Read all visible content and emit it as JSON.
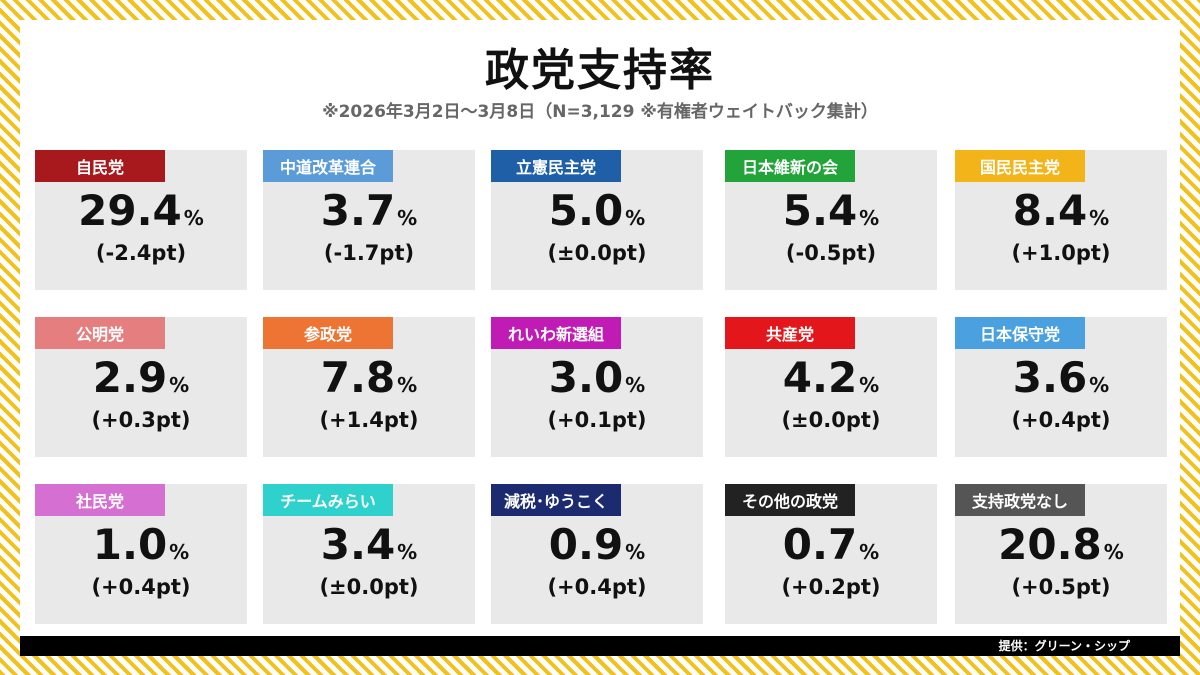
{
  "header": {
    "title": "政党支持率",
    "subtitle": "※2026年3月2日～3月8日（N=3,129 ※有権者ウェイトバック集計）"
  },
  "footer": {
    "credit": "提供：グリーン・シップ"
  },
  "chart_data": {
    "type": "table",
    "unit": "%",
    "parties": [
      {
        "name": "自民党",
        "value": "29.4",
        "change": "(-2.4pt)",
        "color": "#a8191e"
      },
      {
        "name": "中道改革連合",
        "value": "3.7",
        "change": "(-1.7pt)",
        "color": "#5a9bd8"
      },
      {
        "name": "立憲民主党",
        "value": "5.0",
        "change": "(±0.0pt)",
        "color": "#1f5fa8"
      },
      {
        "name": "日本維新の会",
        "value": "5.4",
        "change": "(-0.5pt)",
        "color": "#23a43a"
      },
      {
        "name": "国民民主党",
        "value": "8.4",
        "change": "(+1.0pt)",
        "color": "#f2b418"
      },
      {
        "name": "公明党",
        "value": "2.9",
        "change": "(+0.3pt)",
        "color": "#e57f7f"
      },
      {
        "name": "参政党",
        "value": "7.8",
        "change": "(+1.4pt)",
        "color": "#ee7433"
      },
      {
        "name": "れいわ新選組",
        "value": "3.0",
        "change": "(+0.1pt)",
        "color": "#c11bb5"
      },
      {
        "name": "共産党",
        "value": "4.2",
        "change": "(±0.0pt)",
        "color": "#e3161b"
      },
      {
        "name": "日本保守党",
        "value": "3.6",
        "change": "(+0.4pt)",
        "color": "#4ba0e0"
      },
      {
        "name": "社民党",
        "value": "1.0",
        "change": "(+0.4pt)",
        "color": "#d56fd1"
      },
      {
        "name": "チームみらい",
        "value": "3.4",
        "change": "(±0.0pt)",
        "color": "#2fd1cc"
      },
      {
        "name": "減税･ゆうこく",
        "value": "0.9",
        "change": "(+0.4pt)",
        "color": "#1c2a70"
      },
      {
        "name": "その他の政党",
        "value": "0.7",
        "change": "(+0.2pt)",
        "color": "#222222"
      },
      {
        "name": "支持政党なし",
        "value": "20.8",
        "change": "(+0.5pt)",
        "color": "#555555"
      }
    ]
  }
}
